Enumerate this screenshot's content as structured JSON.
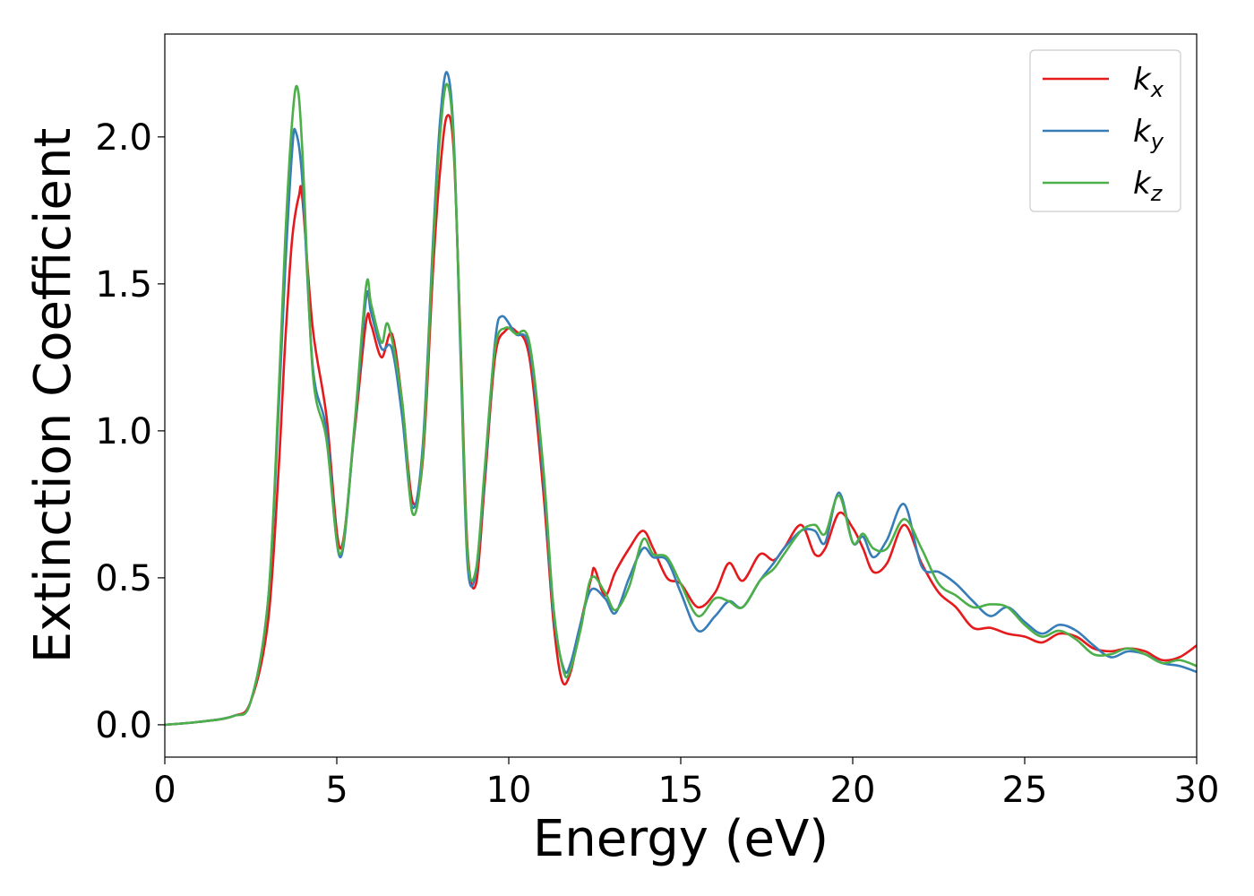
{
  "chart_data": {
    "type": "line",
    "xlabel": "Energy (eV)",
    "ylabel": "Extinction Coefficient",
    "xlim": [
      0,
      30
    ],
    "ylim": [
      -0.11,
      2.35
    ],
    "xticks": [
      0,
      5,
      10,
      15,
      20,
      25,
      30
    ],
    "yticks": [
      0.0,
      0.5,
      1.0,
      1.5,
      2.0
    ],
    "xtick_labels": [
      "0",
      "5",
      "10",
      "15",
      "20",
      "25",
      "30"
    ],
    "ytick_labels": [
      "0.0",
      "0.5",
      "1.0",
      "1.5",
      "2.0"
    ],
    "grid": false,
    "legend_position": "top-right",
    "series": [
      {
        "name": "k",
        "subscript": "x",
        "color": "#e41a1c",
        "x": [
          0,
          1,
          2,
          2.5,
          3,
          3.3,
          3.5,
          3.7,
          3.9,
          4.0,
          4.3,
          4.7,
          5.1,
          5.5,
          5.85,
          6.0,
          6.3,
          6.6,
          6.9,
          7.2,
          7.5,
          7.8,
          8.0,
          8.2,
          8.4,
          8.6,
          8.8,
          9.05,
          9.3,
          9.6,
          9.9,
          10.2,
          10.6,
          11.0,
          11.3,
          11.55,
          11.8,
          12.1,
          12.4,
          12.5,
          12.8,
          13.1,
          13.5,
          13.9,
          14.2,
          14.6,
          15.0,
          15.5,
          16.0,
          16.4,
          16.8,
          17.3,
          17.7,
          18.0,
          18.5,
          18.9,
          19.2,
          19.6,
          20.0,
          20.3,
          20.6,
          21.0,
          21.5,
          22.0,
          22.5,
          23.0,
          23.5,
          24.0,
          24.5,
          25.0,
          25.5,
          26.0,
          26.5,
          27.0,
          27.5,
          28.0,
          28.5,
          29.0,
          29.5,
          30.0
        ],
        "y": [
          0,
          0.01,
          0.03,
          0.08,
          0.35,
          0.85,
          1.3,
          1.65,
          1.8,
          1.79,
          1.35,
          1.05,
          0.6,
          0.98,
          1.37,
          1.36,
          1.25,
          1.33,
          1.1,
          0.76,
          0.9,
          1.55,
          1.88,
          2.07,
          1.95,
          1.3,
          0.6,
          0.48,
          0.82,
          1.25,
          1.34,
          1.34,
          1.25,
          0.8,
          0.35,
          0.15,
          0.18,
          0.35,
          0.5,
          0.53,
          0.44,
          0.52,
          0.6,
          0.66,
          0.6,
          0.5,
          0.48,
          0.4,
          0.45,
          0.55,
          0.49,
          0.58,
          0.56,
          0.6,
          0.68,
          0.58,
          0.6,
          0.72,
          0.67,
          0.6,
          0.52,
          0.55,
          0.68,
          0.55,
          0.45,
          0.4,
          0.33,
          0.33,
          0.31,
          0.3,
          0.28,
          0.31,
          0.3,
          0.26,
          0.25,
          0.26,
          0.25,
          0.22,
          0.23,
          0.27
        ]
      },
      {
        "name": "k",
        "subscript": "y",
        "color": "#377eb8",
        "x": [
          0,
          1,
          2,
          2.5,
          3,
          3.3,
          3.5,
          3.7,
          3.8,
          4.0,
          4.3,
          4.7,
          5.1,
          5.5,
          5.85,
          6.0,
          6.3,
          6.6,
          6.9,
          7.2,
          7.5,
          7.8,
          8.0,
          8.2,
          8.4,
          8.6,
          8.8,
          9.05,
          9.3,
          9.6,
          9.8,
          10.2,
          10.6,
          11.0,
          11.3,
          11.6,
          11.8,
          12.1,
          12.4,
          12.8,
          13.1,
          13.5,
          13.9,
          14.2,
          14.6,
          15.0,
          15.5,
          16.0,
          16.4,
          16.8,
          17.3,
          17.7,
          18.0,
          18.5,
          18.9,
          19.2,
          19.6,
          20.0,
          20.3,
          20.6,
          21.0,
          21.5,
          22.0,
          22.5,
          23.0,
          23.5,
          24.0,
          24.5,
          25.0,
          25.5,
          26.0,
          26.5,
          27.0,
          27.5,
          28.0,
          28.5,
          29.0,
          29.5,
          30.0
        ],
        "y": [
          0,
          0.01,
          0.03,
          0.08,
          0.42,
          1.05,
          1.55,
          1.95,
          2.02,
          1.85,
          1.22,
          1.0,
          0.57,
          0.99,
          1.45,
          1.4,
          1.28,
          1.28,
          1.05,
          0.74,
          0.95,
          1.65,
          2.05,
          2.22,
          2.0,
          1.25,
          0.55,
          0.52,
          0.85,
          1.3,
          1.39,
          1.33,
          1.28,
          0.85,
          0.38,
          0.19,
          0.21,
          0.35,
          0.46,
          0.43,
          0.38,
          0.5,
          0.6,
          0.57,
          0.56,
          0.45,
          0.32,
          0.37,
          0.42,
          0.4,
          0.49,
          0.55,
          0.6,
          0.66,
          0.66,
          0.62,
          0.79,
          0.62,
          0.64,
          0.57,
          0.63,
          0.75,
          0.54,
          0.52,
          0.48,
          0.42,
          0.37,
          0.4,
          0.35,
          0.31,
          0.34,
          0.32,
          0.27,
          0.23,
          0.25,
          0.24,
          0.21,
          0.2,
          0.18
        ]
      },
      {
        "name": "k",
        "subscript": "z",
        "color": "#4daf4a",
        "x": [
          0,
          1,
          2,
          2.5,
          3,
          3.3,
          3.5,
          3.7,
          3.85,
          4.0,
          4.3,
          4.7,
          5.1,
          5.5,
          5.85,
          6.0,
          6.3,
          6.5,
          6.9,
          7.2,
          7.5,
          7.8,
          8.0,
          8.2,
          8.4,
          8.6,
          8.8,
          9.05,
          9.3,
          9.6,
          9.9,
          10.2,
          10.6,
          11.0,
          11.3,
          11.6,
          11.8,
          12.1,
          12.4,
          12.8,
          13.1,
          13.5,
          13.9,
          14.2,
          14.6,
          15.0,
          15.5,
          16.0,
          16.4,
          16.8,
          17.3,
          17.7,
          18.0,
          18.5,
          18.9,
          19.2,
          19.6,
          20.0,
          20.3,
          20.6,
          21.0,
          21.5,
          22.0,
          22.5,
          23.0,
          23.5,
          24.0,
          24.5,
          25.0,
          25.5,
          26.0,
          26.5,
          27.0,
          27.5,
          28.0,
          28.5,
          29.0,
          29.5,
          30.0
        ],
        "y": [
          0,
          0.01,
          0.03,
          0.08,
          0.42,
          1.1,
          1.65,
          2.05,
          2.17,
          1.95,
          1.2,
          0.97,
          0.58,
          1.0,
          1.49,
          1.43,
          1.3,
          1.36,
          1.1,
          0.72,
          0.92,
          1.62,
          2.0,
          2.18,
          1.98,
          1.28,
          0.58,
          0.53,
          0.87,
          1.28,
          1.35,
          1.33,
          1.3,
          0.88,
          0.4,
          0.18,
          0.19,
          0.33,
          0.5,
          0.45,
          0.39,
          0.47,
          0.63,
          0.58,
          0.57,
          0.48,
          0.37,
          0.43,
          0.42,
          0.4,
          0.49,
          0.53,
          0.58,
          0.66,
          0.68,
          0.65,
          0.78,
          0.62,
          0.65,
          0.6,
          0.6,
          0.7,
          0.6,
          0.48,
          0.44,
          0.4,
          0.41,
          0.4,
          0.34,
          0.3,
          0.32,
          0.29,
          0.24,
          0.24,
          0.26,
          0.24,
          0.21,
          0.22,
          0.2
        ]
      }
    ]
  }
}
